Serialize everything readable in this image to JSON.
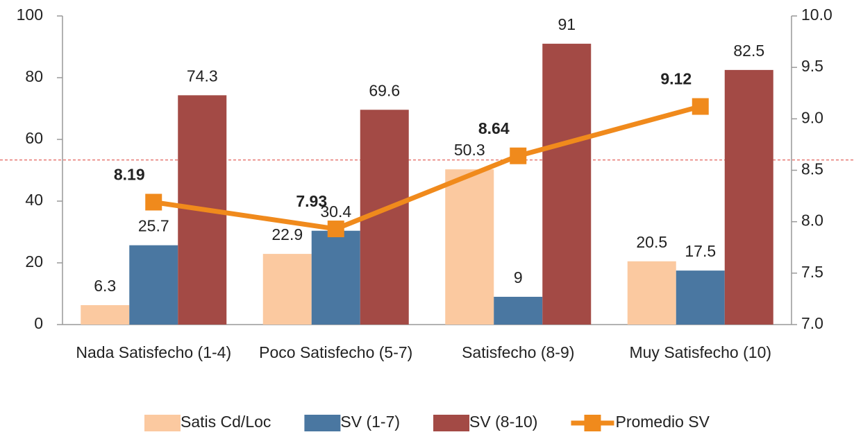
{
  "chart_data": {
    "type": "bar_line",
    "categories": [
      "Nada Satisfecho (1-4)",
      "Poco Satisfecho (5-7)",
      "Satisfecho (8-9)",
      "Muy Satisfecho (10)"
    ],
    "series": [
      {
        "name": "Satis Cd/Loc",
        "color": "#fbc9a0",
        "type": "bar",
        "values": [
          6.3,
          22.9,
          50.3,
          20.5
        ]
      },
      {
        "name": "SV (1-7)",
        "color": "#4a77a1",
        "type": "bar",
        "values": [
          25.7,
          30.4,
          9,
          17.5
        ]
      },
      {
        "name": "SV (8-10)",
        "color": "#a34a45",
        "type": "bar",
        "values": [
          74.3,
          69.6,
          91,
          82.5
        ]
      },
      {
        "name": "Promedio SV",
        "color": "#f08a1c",
        "type": "line",
        "axis": "y2",
        "values": [
          8.19,
          7.93,
          8.64,
          9.12
        ]
      }
    ],
    "ylim": [
      0,
      100
    ],
    "yticks": [
      0,
      20,
      40,
      60,
      80,
      100
    ],
    "y2lim": [
      7.0,
      10.0
    ],
    "y2ticks": [
      {
        "value": 7.0,
        "label": "7.0"
      },
      {
        "value": 7.5,
        "label": "7.5"
      },
      {
        "value": 8.0,
        "label": "8.0"
      },
      {
        "value": 8.5,
        "label": "8.5"
      },
      {
        "value": 9.0,
        "label": "9.0"
      },
      {
        "value": 9.5,
        "label": "9.5"
      },
      {
        "value": 10.0,
        "label": "10.0"
      }
    ],
    "reference_line": {
      "value": 8.6,
      "axis": "y2",
      "color": "#e0524a"
    },
    "legend": "bottom"
  }
}
